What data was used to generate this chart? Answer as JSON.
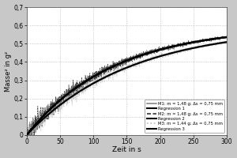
{
  "xlabel": "Zeit in s",
  "ylabel": "Masse² in g²",
  "xlim": [
    0,
    300
  ],
  "ylim": [
    0,
    0.7
  ],
  "xticks": [
    0,
    50,
    100,
    150,
    200,
    250,
    300
  ],
  "yticks": [
    0.0,
    0.1,
    0.2,
    0.3,
    0.4,
    0.5,
    0.6,
    0.7
  ],
  "bg_color": "#c8c8c8",
  "plot_bg": "#ffffff",
  "legend_labels": [
    "M1: m = 1,48 g; Δs = 0,75 mm",
    "Regression 1",
    "M2: m = 1,48 g; Δs = 0,75 mm",
    "Regression 2",
    "M3: m = 1,44 g; Δs = 0,75 mm",
    "Regression 3"
  ],
  "m1_color": "#888888",
  "m2_color": "#333333",
  "m3_color": "#bbbbbb",
  "reg_color": "#000000",
  "t_max": 300,
  "k1": 0.595,
  "k2": 0.595,
  "k3": 0.595,
  "tau1": 130,
  "tau2": 130,
  "tau3": 155
}
